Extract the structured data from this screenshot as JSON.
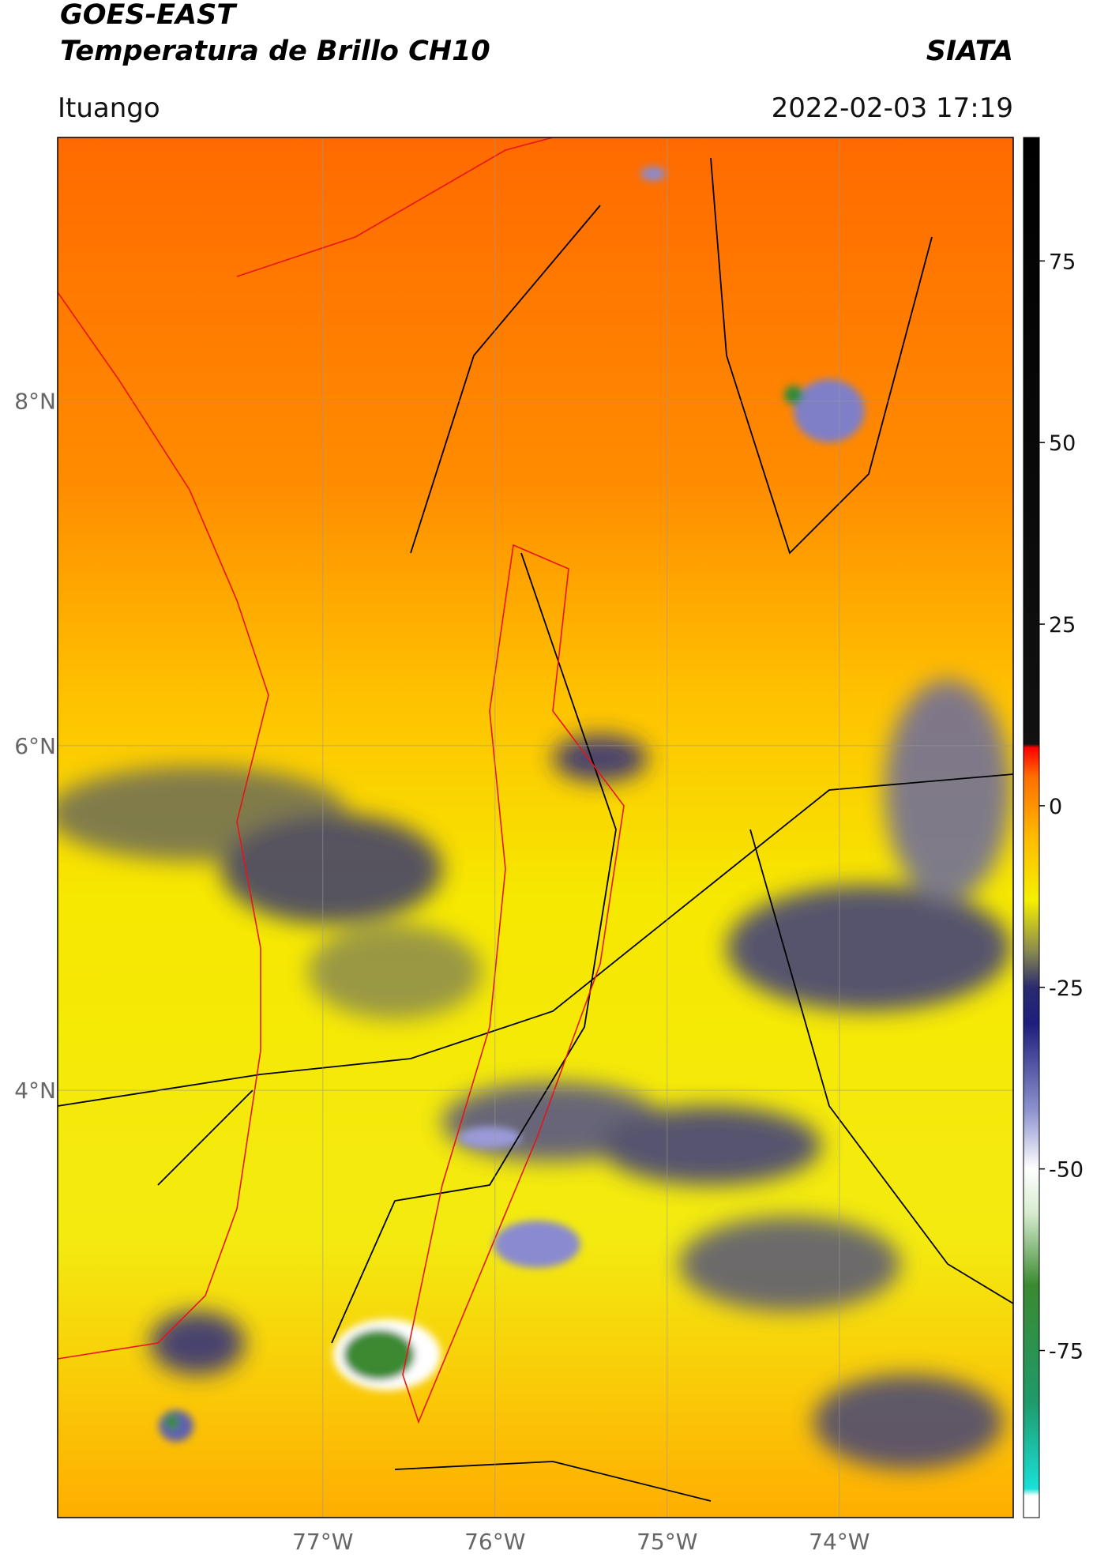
{
  "header": {
    "title": "GOES-EAST",
    "subtitle": "Temperatura de Brillo CH10",
    "brand": "SIATA",
    "location": "Ituango",
    "datetime": "2022-02-03 17:19"
  },
  "chart_data": {
    "type": "map",
    "xlim": [
      -78.54,
      -72.99
    ],
    "ylim": [
      1.52,
      9.53
    ],
    "xticks": [
      {
        "value": -77,
        "label": "77°W"
      },
      {
        "value": -76,
        "label": "76°W"
      },
      {
        "value": -75,
        "label": "75°W"
      },
      {
        "value": -74,
        "label": "74°W"
      }
    ],
    "yticks": [
      {
        "value": 8,
        "label": "8°N"
      },
      {
        "value": 6,
        "label": "6°N"
      },
      {
        "value": 4,
        "label": "4°N"
      }
    ],
    "grid": true,
    "colorbar": {
      "lim": [
        -98,
        92
      ],
      "ticks": [
        75,
        50,
        25,
        0,
        -25,
        -50,
        -75
      ],
      "stops": [
        {
          "value": -98,
          "color": "#ffffff"
        },
        {
          "value": -95,
          "color": "#ffffff"
        },
        {
          "value": -94,
          "color": "#19e0d8"
        },
        {
          "value": -82,
          "color": "#1f9a6a"
        },
        {
          "value": -66,
          "color": "#3a8a30"
        },
        {
          "value": -56,
          "color": "#d8ecd0"
        },
        {
          "value": -50,
          "color": "#ffffff"
        },
        {
          "value": -42,
          "color": "#8e93cf"
        },
        {
          "value": -30,
          "color": "#1d1f7c"
        },
        {
          "value": -25,
          "color": "#2a2a70"
        },
        {
          "value": -20,
          "color": "#8a8a50"
        },
        {
          "value": -13,
          "color": "#f5f000"
        },
        {
          "value": -4,
          "color": "#ffb800"
        },
        {
          "value": 4,
          "color": "#ff6e00"
        },
        {
          "value": 8,
          "color": "#ff0000"
        },
        {
          "value": 8.5,
          "color": "#111111"
        },
        {
          "value": 92,
          "color": "#000000"
        }
      ]
    }
  }
}
